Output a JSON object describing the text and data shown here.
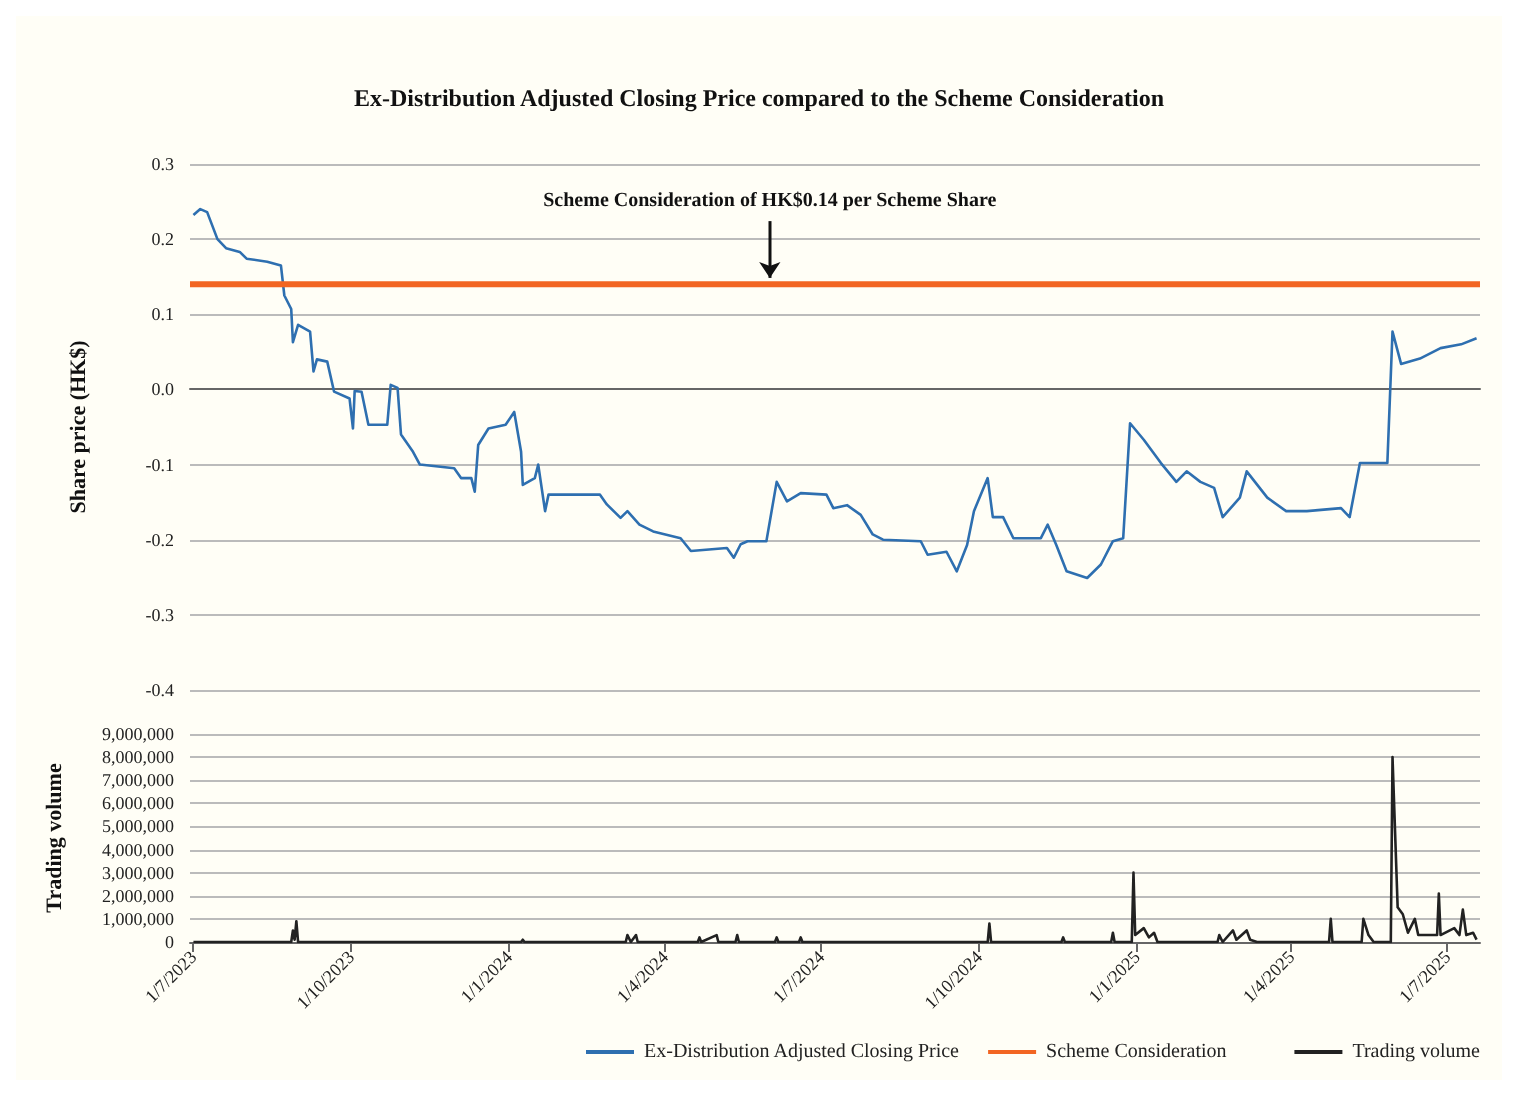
{
  "chart_data": [
    {
      "type": "line",
      "title": "Ex-Distribution Adjusted Closing Price compared to the Scheme Consideration",
      "ylabel": "Share price (HK$)",
      "series": [
        {
          "name": "Ex-Distribution Adjusted Closing Price",
          "color": "#2e6fb0",
          "x": [
            "2023-07-01",
            "2023-07-05",
            "2023-07-09",
            "2023-07-15",
            "2023-07-20",
            "2023-07-28",
            "2023-08-01",
            "2023-08-13",
            "2023-08-21",
            "2023-08-23",
            "2023-08-27",
            "2023-08-28",
            "2023-08-31",
            "2023-09-07",
            "2023-09-09",
            "2023-09-11",
            "2023-09-17",
            "2023-09-21",
            "2023-09-30",
            "2023-10-02",
            "2023-10-03",
            "2023-10-07",
            "2023-10-11",
            "2023-10-22",
            "2023-10-24",
            "2023-10-28",
            "2023-10-30",
            "2023-11-06",
            "2023-11-10",
            "2023-11-30",
            "2023-12-04",
            "2023-12-10",
            "2023-12-12",
            "2023-12-14",
            "2023-12-20",
            "2023-12-30",
            "2024-01-04",
            "2024-01-08",
            "2024-01-09",
            "2024-01-16",
            "2024-01-18",
            "2024-01-22",
            "2024-01-24",
            "2024-02-23",
            "2024-02-27",
            "2024-03-06",
            "2024-03-10",
            "2024-03-17",
            "2024-03-25",
            "2024-04-10",
            "2024-04-16",
            "2024-05-07",
            "2024-05-11",
            "2024-05-15",
            "2024-05-19",
            "2024-05-30",
            "2024-06-05",
            "2024-06-11",
            "2024-06-19",
            "2024-07-04",
            "2024-07-08",
            "2024-07-16",
            "2024-07-24",
            "2024-07-31",
            "2024-08-06",
            "2024-08-28",
            "2024-09-01",
            "2024-09-12",
            "2024-09-18",
            "2024-09-24",
            "2024-09-28",
            "2024-10-06",
            "2024-10-09",
            "2024-10-15",
            "2024-10-21",
            "2024-11-06",
            "2024-11-10",
            "2024-11-15",
            "2024-11-21",
            "2024-12-03",
            "2024-12-11",
            "2024-12-18",
            "2024-12-24",
            "2024-12-28",
            "2025-01-05",
            "2025-01-15",
            "2025-01-24",
            "2025-01-30",
            "2025-02-07",
            "2025-02-15",
            "2025-02-20",
            "2025-03-02",
            "2025-03-06",
            "2025-03-18",
            "2025-03-29",
            "2025-04-10",
            "2025-04-30",
            "2025-05-05",
            "2025-05-11",
            "2025-05-27",
            "2025-05-30",
            "2025-06-04",
            "2025-06-15",
            "2025-06-27",
            "2025-07-09",
            "2025-07-18"
          ],
          "values": [
            0.232,
            0.24,
            0.236,
            0.2,
            0.188,
            0.183,
            0.174,
            0.17,
            0.165,
            0.125,
            0.107,
            0.063,
            0.086,
            0.077,
            0.024,
            0.04,
            0.037,
            -0.003,
            -0.012,
            -0.052,
            -0.002,
            -0.003,
            -0.047,
            -0.047,
            0.006,
            0.002,
            -0.06,
            -0.083,
            -0.1,
            -0.105,
            -0.118,
            -0.118,
            -0.136,
            -0.074,
            -0.052,
            -0.047,
            -0.03,
            -0.083,
            -0.127,
            -0.118,
            -0.1,
            -0.162,
            -0.14,
            -0.14,
            -0.153,
            -0.171,
            -0.162,
            -0.18,
            -0.189,
            -0.198,
            -0.215,
            -0.211,
            -0.224,
            -0.206,
            -0.202,
            -0.202,
            -0.123,
            -0.149,
            -0.138,
            -0.14,
            -0.158,
            -0.154,
            -0.167,
            -0.193,
            -0.2,
            -0.202,
            -0.22,
            -0.216,
            -0.242,
            -0.207,
            -0.162,
            -0.118,
            -0.17,
            -0.17,
            -0.198,
            -0.198,
            -0.18,
            -0.207,
            -0.242,
            -0.251,
            -0.233,
            -0.202,
            -0.198,
            -0.045,
            -0.067,
            -0.098,
            -0.123,
            -0.109,
            -0.123,
            -0.131,
            -0.17,
            -0.144,
            -0.109,
            -0.144,
            -0.162,
            -0.162,
            -0.158,
            -0.17,
            -0.098,
            -0.098,
            0.077,
            0.034,
            0.041,
            0.055,
            0.06,
            0.068
          ]
        }
      ],
      "ref_lines": [
        {
          "axis": "y",
          "value": 0.14,
          "label": "Scheme Consideration",
          "color": "#f26522"
        }
      ],
      "annotations": [
        {
          "text": "Scheme Consideration of HK$0.14 per Scheme Share",
          "x": "2024-06-01",
          "y": 0.14
        }
      ],
      "xlim": [
        "2023-06-29",
        "2025-07-20"
      ],
      "ylim": [
        -0.4,
        0.3
      ],
      "yticks": [
        -0.4,
        -0.3,
        -0.2,
        -0.1,
        {
          "value": 0,
          "label": "0.0"
        },
        0.1,
        0.2,
        0.3
      ],
      "grid": "y",
      "legend": "bottom",
      "tick_labels": "y"
    },
    {
      "type": "line",
      "ylabel": "Trading volume",
      "series": [
        {
          "name": "Trading volume",
          "color": "#222222",
          "x": [
            "2023-07-01",
            "2023-08-27",
            "2023-08-28",
            "2023-08-29",
            "2023-08-30",
            "2023-08-31",
            "2024-01-08",
            "2024-01-09",
            "2024-01-10",
            "2024-03-09",
            "2024-03-10",
            "2024-03-12",
            "2024-03-15",
            "2024-03-16",
            "2024-04-20",
            "2024-04-21",
            "2024-04-22",
            "2024-05-01",
            "2024-05-02",
            "2024-05-12",
            "2024-05-13",
            "2024-05-14",
            "2024-06-04",
            "2024-06-05",
            "2024-06-06",
            "2024-06-18",
            "2024-06-19",
            "2024-06-20",
            "2024-10-06",
            "2024-10-07",
            "2024-10-08",
            "2024-11-18",
            "2024-11-19",
            "2024-11-20",
            "2024-12-17",
            "2024-12-18",
            "2024-12-19",
            "2024-12-29",
            "2024-12-30",
            "2024-12-31",
            "2025-01-05",
            "2025-01-08",
            "2025-01-11",
            "2025-01-13",
            "2025-02-17",
            "2025-02-18",
            "2025-02-20",
            "2025-02-26",
            "2025-02-28",
            "2025-03-06",
            "2025-03-08",
            "2025-03-12",
            "2025-04-23",
            "2025-04-24",
            "2025-04-25",
            "2025-05-12",
            "2025-05-13",
            "2025-05-16",
            "2025-05-19",
            "2025-05-29",
            "2025-05-30",
            "2025-06-02",
            "2025-06-05",
            "2025-06-08",
            "2025-06-12",
            "2025-06-14",
            "2025-06-25",
            "2025-06-26",
            "2025-06-27",
            "2025-07-05",
            "2025-07-08",
            "2025-07-10",
            "2025-07-12",
            "2025-07-16",
            "2025-07-18"
          ],
          "values": [
            0,
            0,
            500000,
            100000,
            900000,
            0,
            0,
            100000,
            0,
            0,
            300000,
            0,
            300000,
            0,
            0,
            200000,
            0,
            300000,
            0,
            0,
            300000,
            0,
            0,
            200000,
            0,
            0,
            200000,
            0,
            0,
            800000,
            0,
            0,
            200000,
            0,
            0,
            400000,
            0,
            0,
            3000000,
            300000,
            600000,
            200000,
            400000,
            0,
            0,
            300000,
            0,
            500000,
            100000,
            500000,
            100000,
            0,
            0,
            1000000,
            0,
            0,
            1000000,
            300000,
            0,
            0,
            8000000,
            1500000,
            1200000,
            400000,
            1000000,
            300000,
            300000,
            2100000,
            300000,
            600000,
            300000,
            1400000,
            300000,
            400000,
            100000
          ]
        }
      ],
      "xlim": [
        "2023-06-29",
        "2025-07-20"
      ],
      "xticks": [
        {
          "value": "2023-07-01",
          "label": "1/7/2023"
        },
        {
          "value": "2023-10-01",
          "label": "1/10/2023"
        },
        {
          "value": "2024-01-01",
          "label": "1/1/2024"
        },
        {
          "value": "2024-04-01",
          "label": "1/4/2024"
        },
        {
          "value": "2024-07-01",
          "label": "1/7/2024"
        },
        {
          "value": "2024-10-01",
          "label": "1/10/2024"
        },
        {
          "value": "2025-01-01",
          "label": "1/1/2025"
        },
        {
          "value": "2025-04-01",
          "label": "1/4/2025"
        },
        {
          "value": "2025-07-01",
          "label": "1/7/2025"
        }
      ],
      "ylim": [
        0,
        9000000
      ],
      "yticks": [
        0,
        {
          "value": 1000000,
          "label": "1,000,000"
        },
        {
          "value": 2000000,
          "label": "2,000,000"
        },
        {
          "value": 3000000,
          "label": "3,000,000"
        },
        {
          "value": 4000000,
          "label": "4,000,000"
        },
        {
          "value": 5000000,
          "label": "5,000,000"
        },
        {
          "value": 6000000,
          "label": "6,000,000"
        },
        {
          "value": 7000000,
          "label": "7,000,000"
        },
        {
          "value": 8000000,
          "label": "8,000,000"
        },
        {
          "value": 9000000,
          "label": "9,000,000"
        }
      ],
      "grid": "y",
      "legend": "bottom right"
    }
  ]
}
